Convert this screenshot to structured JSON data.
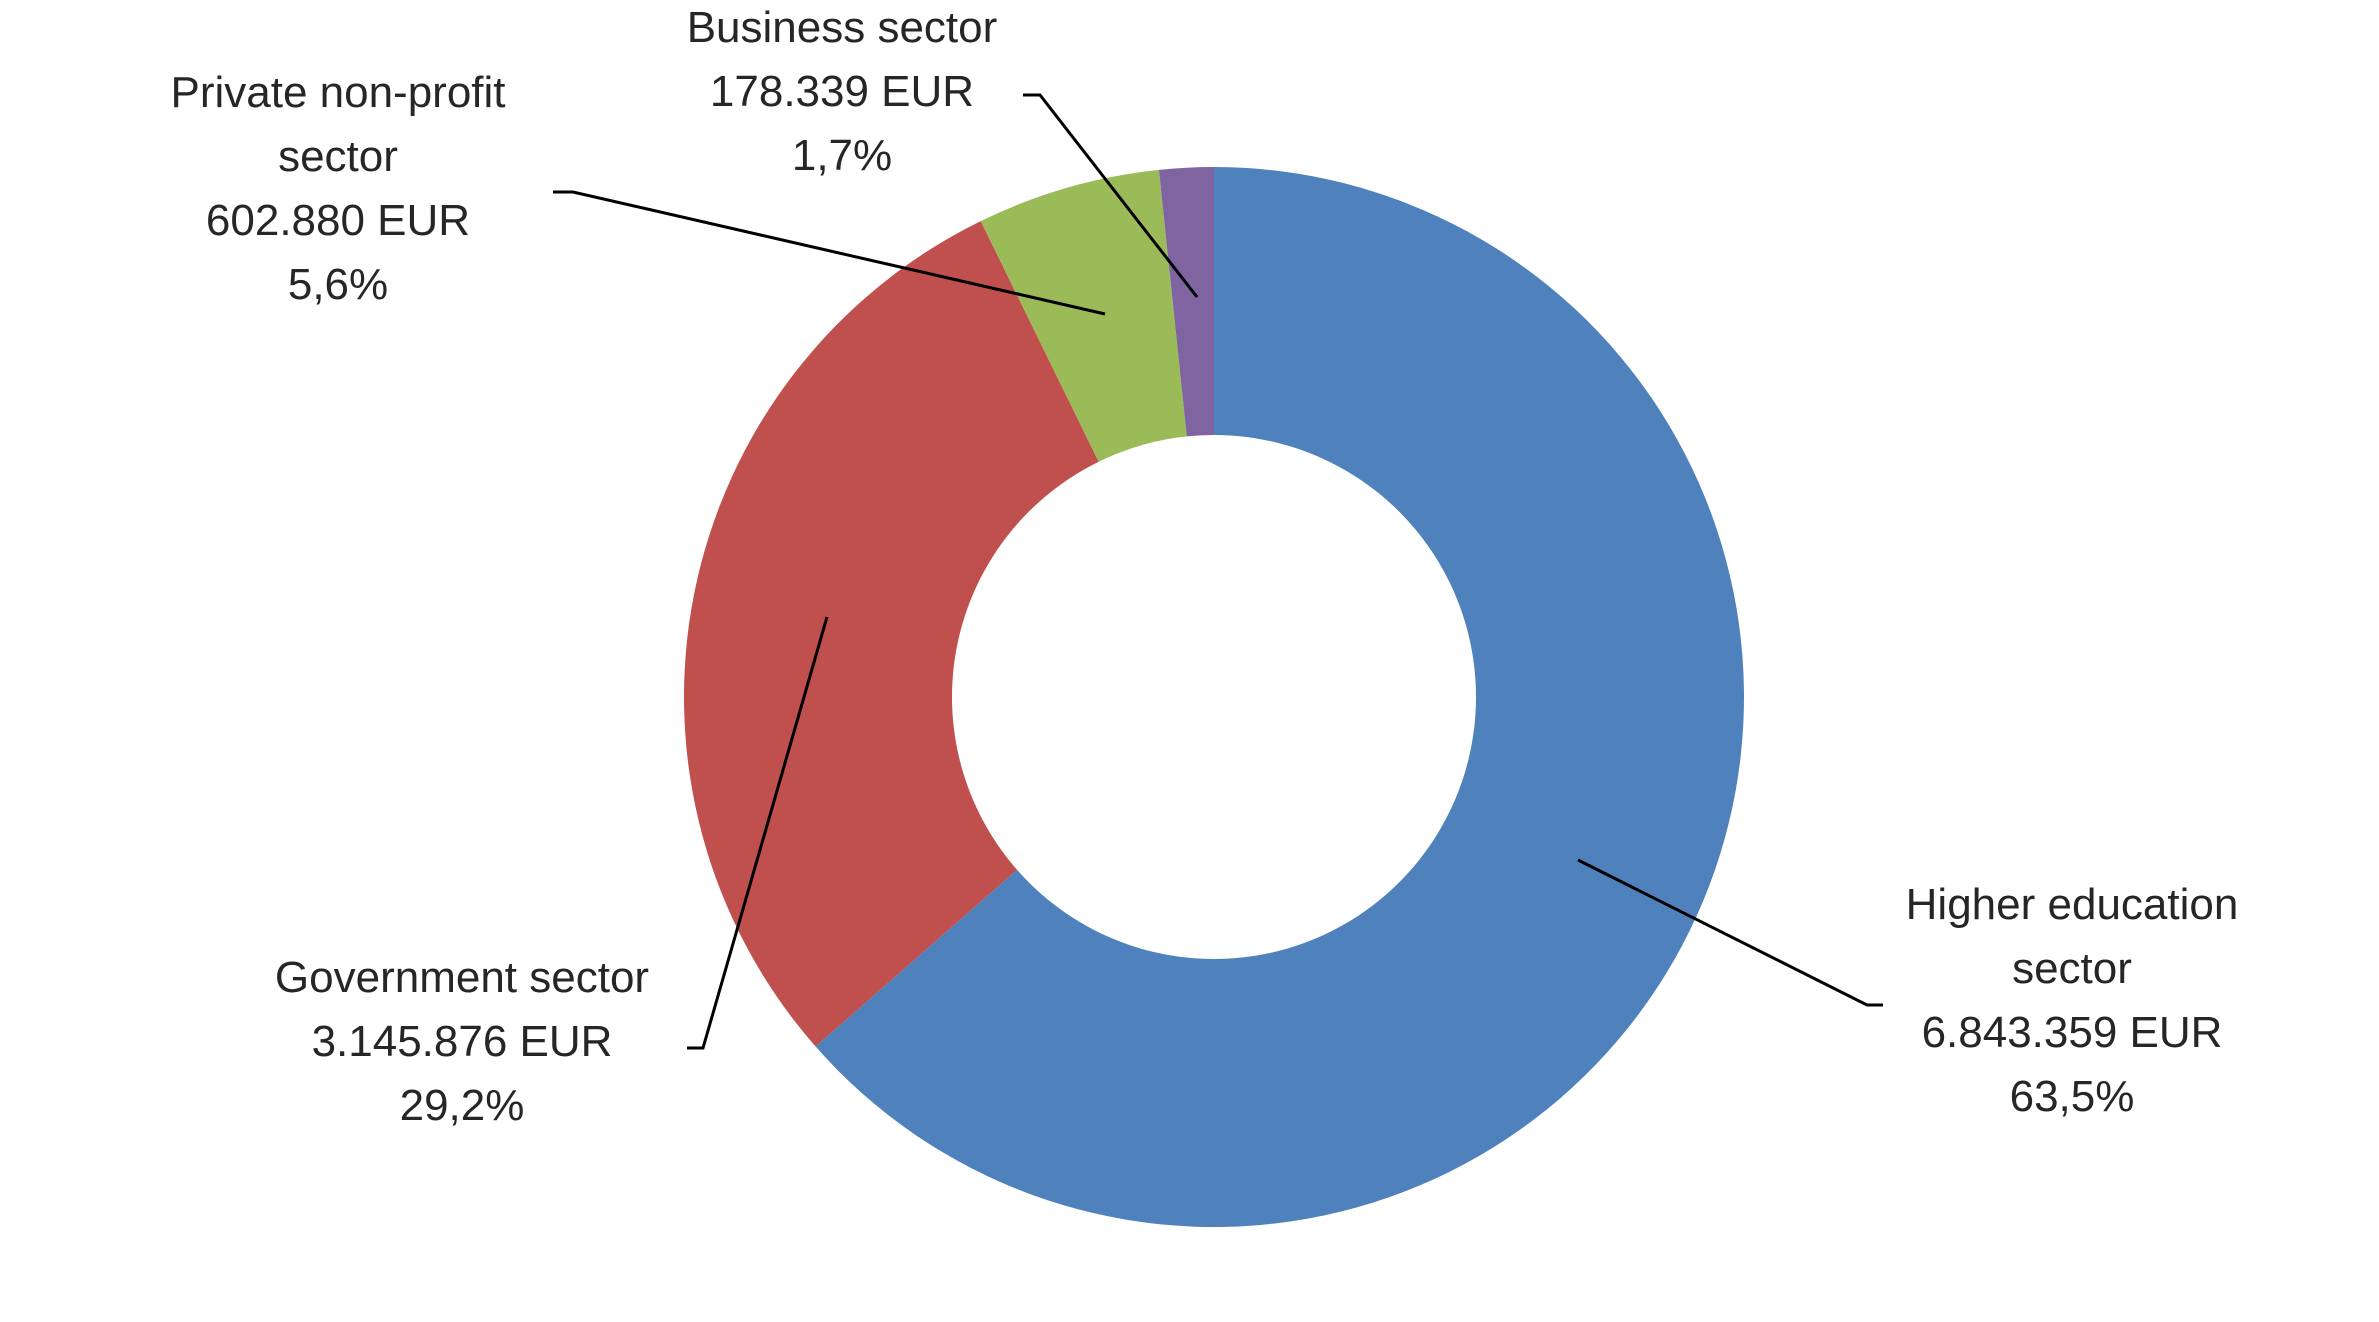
{
  "chart_data": {
    "type": "pie",
    "donut": true,
    "categories": [
      "Higher education sector",
      "Government sector",
      "Private non-profit sector",
      "Business sector"
    ],
    "values": [
      6843359,
      3145876,
      602880,
      178339
    ],
    "percentages": [
      63.5,
      29.2,
      5.6,
      1.7
    ],
    "colors": [
      "#4F81BD",
      "#C0504D",
      "#9BBB59",
      "#8064A2"
    ],
    "labels": [
      {
        "lines": [
          "Higher education",
          "sector",
          "6.843.359 EUR",
          "63,5%"
        ]
      },
      {
        "lines": [
          "Government sector",
          "3.145.876 EUR",
          "29,2%"
        ]
      },
      {
        "lines": [
          "Private non-profit",
          "sector",
          "602.880 EUR",
          "5,6%"
        ]
      },
      {
        "lines": [
          "Business sector",
          "178.339 EUR",
          "1,7%"
        ]
      }
    ],
    "start_angle": "12 o'clock",
    "direction": "clockwise",
    "legend": "none",
    "title": ""
  }
}
